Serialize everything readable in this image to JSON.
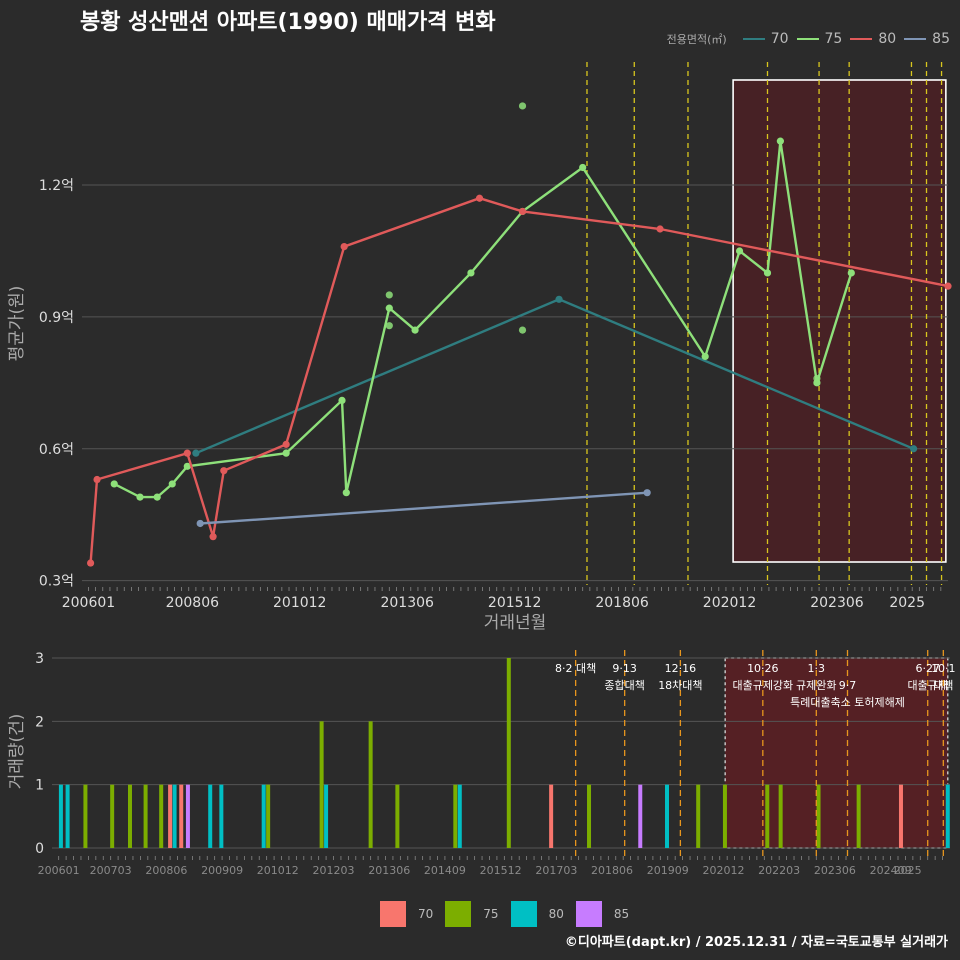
{
  "title": "봉황 성산맨션 아파트(1990) 매매가격 변화",
  "credit": "©디아파트(dapt.kr) / 2025.12.31 / 자료=국토교통부 실거래가",
  "chart_data": [
    {
      "type": "line",
      "title": "봉황 성산맨션 아파트(1990) 매매가격 변화",
      "xlabel": "거래년월",
      "ylabel": "평균가(원)",
      "x_ticks": [
        "200601",
        "200806",
        "201012",
        "201306",
        "201512",
        "201806",
        "202012",
        "202306",
        "2025"
      ],
      "y_ticks": [
        {
          "value": 0.3,
          "label": "0.3억"
        },
        {
          "value": 0.6,
          "label": "0.6억"
        },
        {
          "value": 0.9,
          "label": "0.9억"
        },
        {
          "value": 1.2,
          "label": "1.2억"
        }
      ],
      "ylim": [
        0.29,
        1.48
      ],
      "xlim": [
        2005.85,
        2026.0
      ],
      "legend_title": "전용면적(㎡)",
      "legend_position": "top-right",
      "highlight_range": [
        2021.0,
        2025.95
      ],
      "policy_lines": [
        2017.6,
        2018.7,
        2019.95,
        2021.8,
        2023.0,
        2023.7,
        2025.15,
        2025.5,
        2025.85
      ],
      "series": [
        {
          "name": "70",
          "color": "#2f7d80",
          "points": [
            [
              2008.5,
              0.59
            ],
            [
              2016.95,
              0.94
            ],
            [
              2025.2,
              0.6
            ]
          ]
        },
        {
          "name": "75",
          "color": "#8ee07a",
          "points": [
            [
              2006.6,
              0.52
            ],
            [
              2007.2,
              0.49
            ],
            [
              2007.6,
              0.49
            ],
            [
              2007.95,
              0.52
            ],
            [
              2008.3,
              0.56
            ],
            [
              2010.6,
              0.59
            ],
            [
              2011.9,
              0.71
            ],
            [
              2012.0,
              0.5
            ],
            [
              2013.0,
              0.92
            ],
            [
              2013.6,
              0.87
            ],
            [
              2014.9,
              1.0
            ],
            [
              2016.1,
              1.14
            ],
            [
              2017.5,
              1.24
            ],
            [
              2020.35,
              0.81
            ],
            [
              2021.15,
              1.05
            ],
            [
              2021.8,
              1.0
            ],
            [
              2022.1,
              1.3
            ],
            [
              2022.95,
              0.75
            ],
            [
              2023.75,
              1.0
            ]
          ],
          "extra_points": [
            [
              2016.1,
              1.38
            ],
            [
              2013.0,
              0.95
            ],
            [
              2013.0,
              0.88
            ],
            [
              2016.1,
              0.87
            ],
            [
              2022.95,
              0.76
            ]
          ]
        },
        {
          "name": "80",
          "color": "#e05a5a",
          "points": [
            [
              2006.05,
              0.34
            ],
            [
              2006.2,
              0.53
            ],
            [
              2008.3,
              0.59
            ],
            [
              2008.9,
              0.4
            ],
            [
              2009.15,
              0.55
            ],
            [
              2010.6,
              0.61
            ],
            [
              2011.95,
              1.06
            ],
            [
              2015.1,
              1.17
            ],
            [
              2016.1,
              1.14
            ],
            [
              2019.3,
              1.1
            ],
            [
              2026.0,
              0.97
            ]
          ]
        },
        {
          "name": "85",
          "color": "#7f95b5",
          "points": [
            [
              2008.6,
              0.43
            ],
            [
              2019.0,
              0.5
            ]
          ]
        }
      ]
    },
    {
      "type": "bar",
      "title": "",
      "xlabel": "",
      "ylabel": "거래량(건)",
      "x_ticks": [
        "200601",
        "200703",
        "200806",
        "200909",
        "201012",
        "201203",
        "201306",
        "201409",
        "201512",
        "201703",
        "201806",
        "201909",
        "202012",
        "202203",
        "202306",
        "202409",
        "2025"
      ],
      "ylim": [
        0,
        3
      ],
      "y_ticks": [
        0,
        1,
        2,
        3
      ],
      "xlim": [
        2005.85,
        2026.0
      ],
      "highlight_range": [
        2021.0,
        2025.95
      ],
      "legend": [
        {
          "name": "70",
          "color": "#f8766d"
        },
        {
          "name": "75",
          "color": "#7cae00"
        },
        {
          "name": "80",
          "color": "#00bfc4"
        },
        {
          "name": "85",
          "color": "#c77cff"
        }
      ],
      "bars": [
        {
          "x": 2006.05,
          "value": 1,
          "series": "80"
        },
        {
          "x": 2006.2,
          "value": 1,
          "series": "80"
        },
        {
          "x": 2006.6,
          "value": 1,
          "series": "75"
        },
        {
          "x": 2007.2,
          "value": 1,
          "series": "75"
        },
        {
          "x": 2007.6,
          "value": 1,
          "series": "75"
        },
        {
          "x": 2007.95,
          "value": 1,
          "series": "75"
        },
        {
          "x": 2008.3,
          "value": 1,
          "series": "75"
        },
        {
          "x": 2008.5,
          "value": 1,
          "series": "70"
        },
        {
          "x": 2008.6,
          "value": 1,
          "series": "80"
        },
        {
          "x": 2008.75,
          "value": 1,
          "series": "70"
        },
        {
          "x": 2008.9,
          "value": 1,
          "series": "85"
        },
        {
          "x": 2009.4,
          "value": 1,
          "series": "80"
        },
        {
          "x": 2009.65,
          "value": 1,
          "series": "80"
        },
        {
          "x": 2010.6,
          "value": 1,
          "series": "80"
        },
        {
          "x": 2010.7,
          "value": 1,
          "series": "75"
        },
        {
          "x": 2011.9,
          "value": 2,
          "series": "75"
        },
        {
          "x": 2012.0,
          "value": 1,
          "series": "80"
        },
        {
          "x": 2013.0,
          "value": 2,
          "series": "75"
        },
        {
          "x": 2013.6,
          "value": 1,
          "series": "75"
        },
        {
          "x": 2014.9,
          "value": 1,
          "series": "75"
        },
        {
          "x": 2015.0,
          "value": 1,
          "series": "80"
        },
        {
          "x": 2016.1,
          "value": 3,
          "series": "75"
        },
        {
          "x": 2017.05,
          "value": 1,
          "series": "70"
        },
        {
          "x": 2017.9,
          "value": 1,
          "series": "75"
        },
        {
          "x": 2019.05,
          "value": 1,
          "series": "85"
        },
        {
          "x": 2019.65,
          "value": 1,
          "series": "80"
        },
        {
          "x": 2020.35,
          "value": 1,
          "series": "75"
        },
        {
          "x": 2020.95,
          "value": 1,
          "series": "75"
        },
        {
          "x": 2021.9,
          "value": 1,
          "series": "75"
        },
        {
          "x": 2022.2,
          "value": 1,
          "series": "75"
        },
        {
          "x": 2023.05,
          "value": 1,
          "series": "75"
        },
        {
          "x": 2023.95,
          "value": 1,
          "series": "75"
        },
        {
          "x": 2024.9,
          "value": 1,
          "series": "70"
        },
        {
          "x": 2025.95,
          "value": 1,
          "series": "80"
        }
      ],
      "annotations": [
        {
          "x": 2017.6,
          "lines": [
            "8·2 대책"
          ]
        },
        {
          "x": 2018.7,
          "lines": [
            "9·13",
            "종합대책"
          ]
        },
        {
          "x": 2019.95,
          "lines": [
            "12·16",
            "18차대책"
          ]
        },
        {
          "x": 2021.8,
          "lines": [
            "10·26",
            "대출규제강화"
          ]
        },
        {
          "x": 2023.0,
          "lines": [
            "1·3",
            "규제완화"
          ]
        },
        {
          "x": 2023.7,
          "lines": [
            "",
            "9·7",
            "특례대출축소 토허제해제"
          ]
        },
        {
          "x": 2025.5,
          "lines": [
            "6·27",
            "대출규제"
          ]
        },
        {
          "x": 2025.85,
          "lines": [
            "10·1",
            "대책"
          ]
        }
      ]
    }
  ]
}
